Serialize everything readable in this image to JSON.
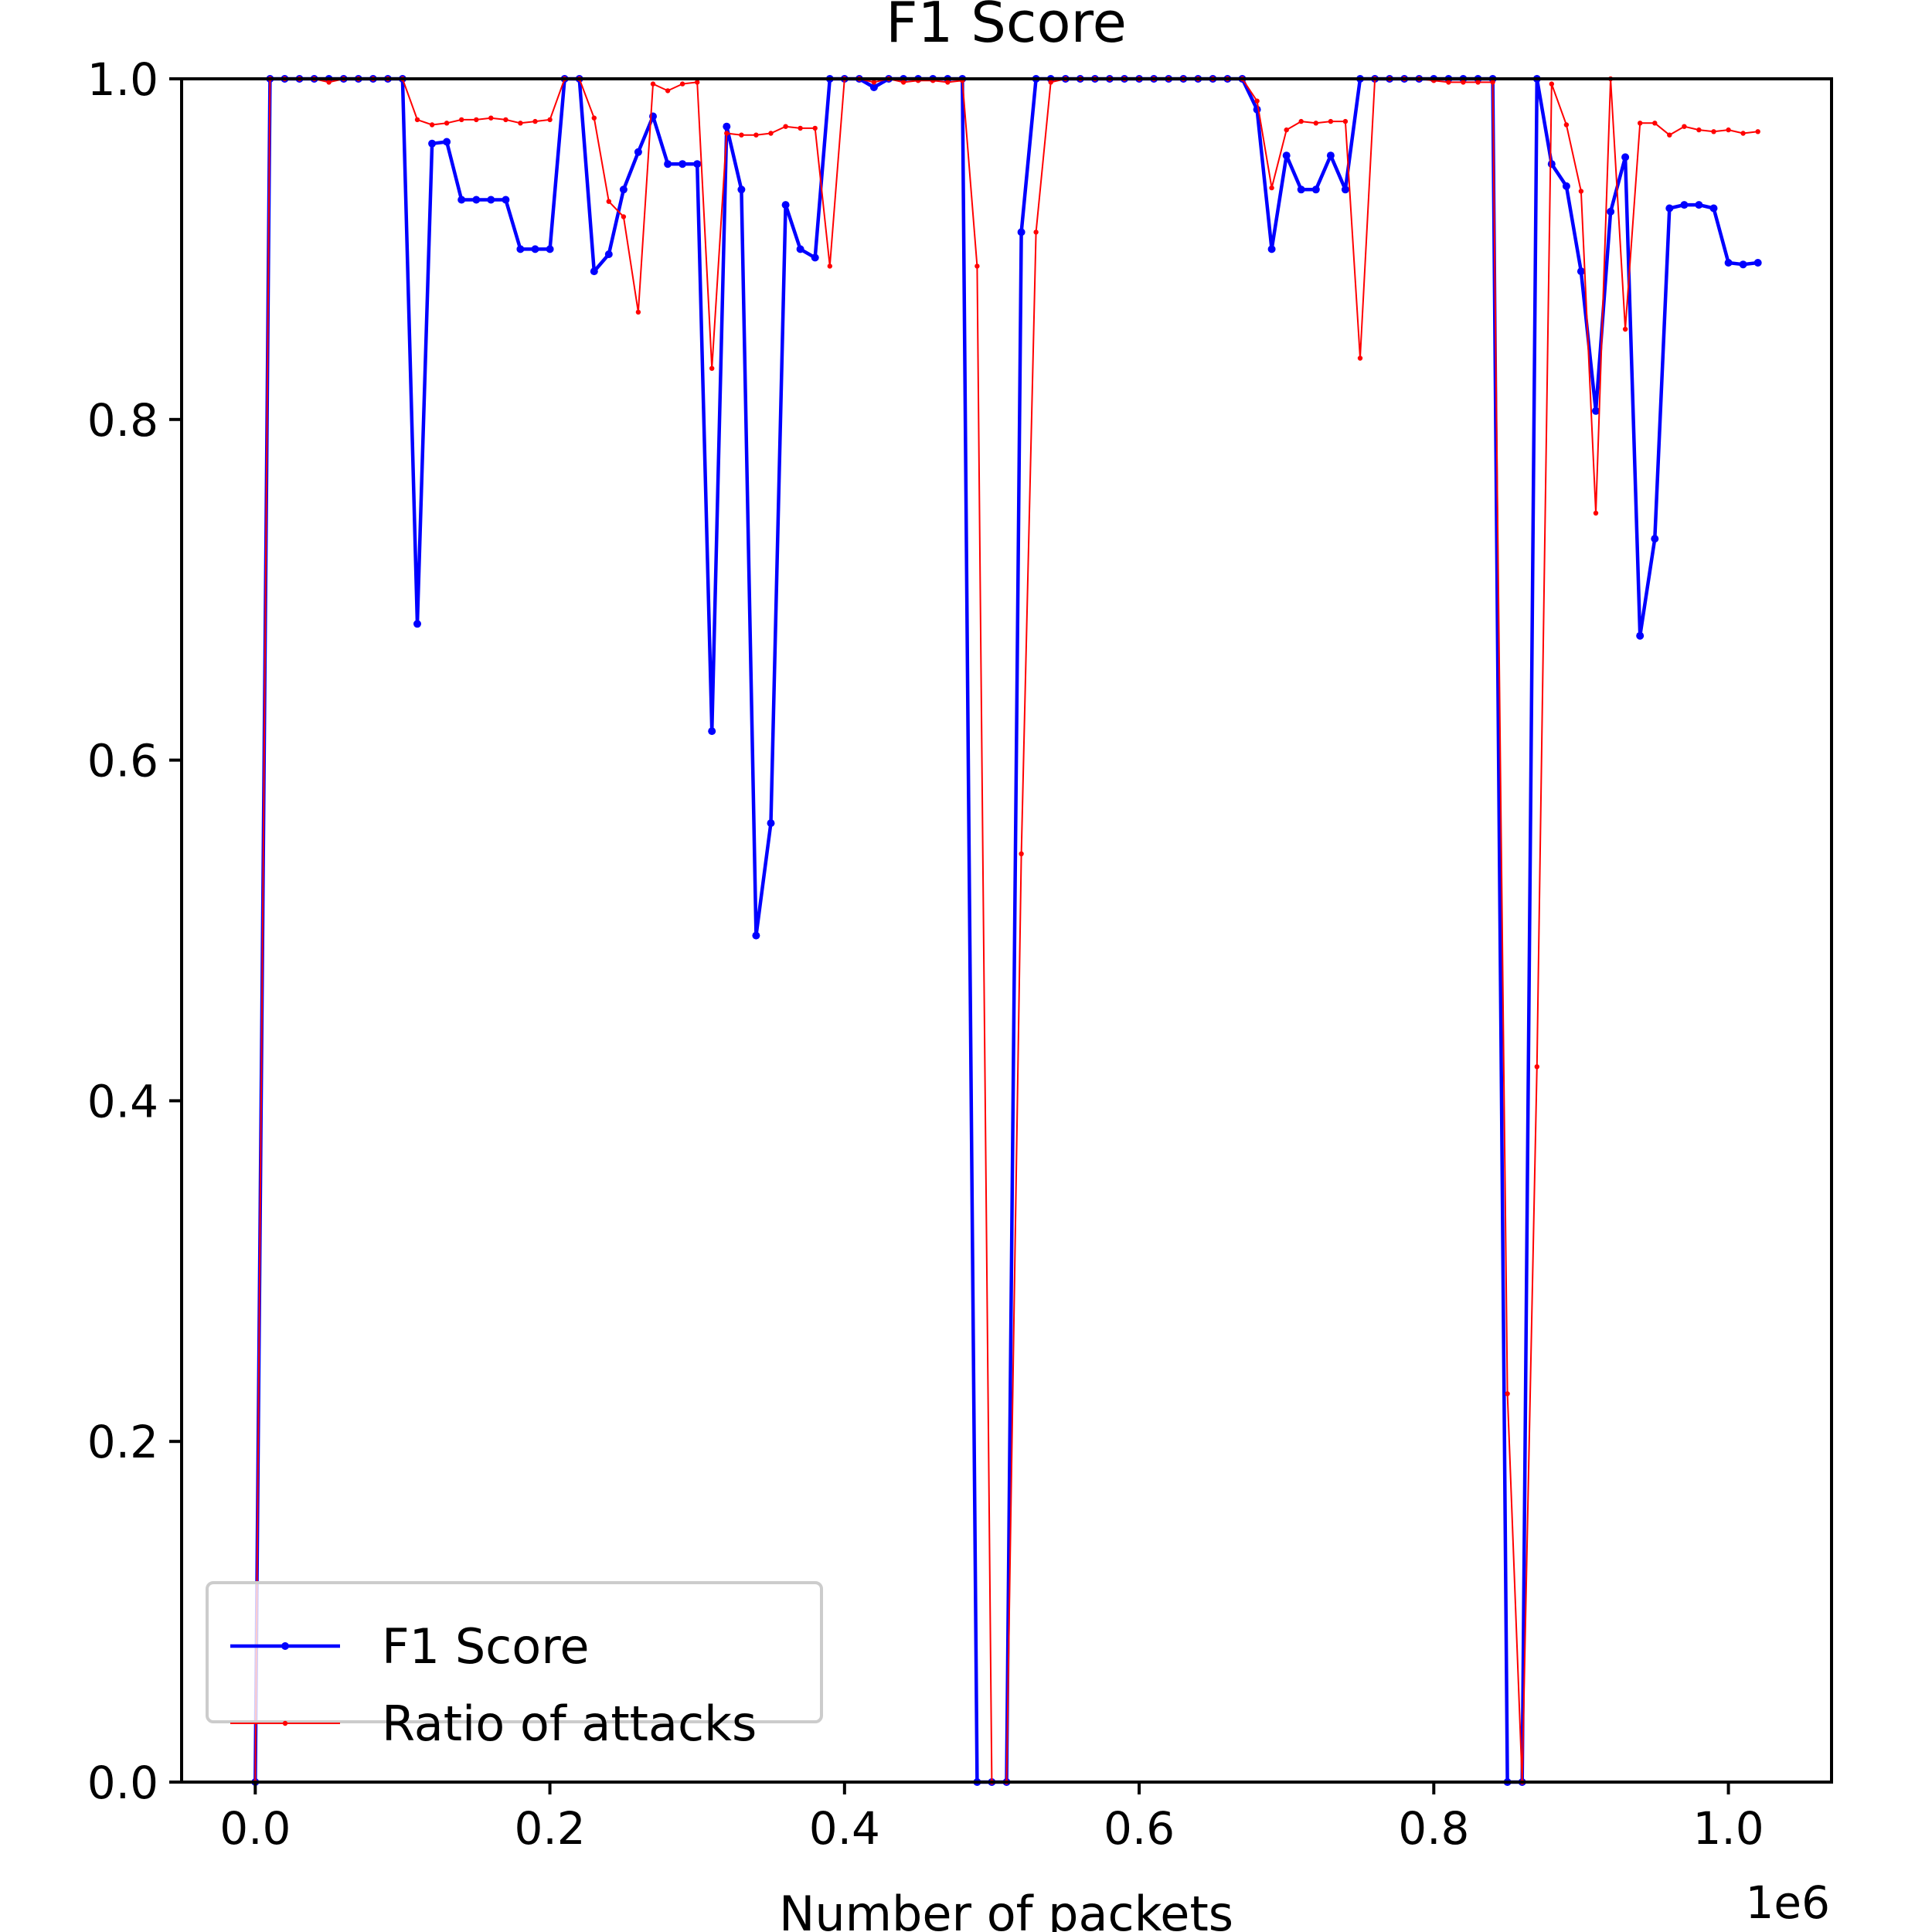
{
  "chart_data": {
    "type": "line",
    "title": "F1 Score",
    "xlabel": "Number of packets",
    "ylabel": "",
    "x_offset_text": "1e6",
    "xlim": [
      -0.05,
      1.07
    ],
    "ylim": [
      0.0,
      1.0
    ],
    "xticks": [
      0.0,
      0.2,
      0.4,
      0.6,
      0.8,
      1.0
    ],
    "xtick_labels": [
      "0.0",
      "0.2",
      "0.4",
      "0.6",
      "0.8",
      "1.0"
    ],
    "yticks": [
      0.0,
      0.2,
      0.4,
      0.6,
      0.8,
      1.0
    ],
    "ytick_labels": [
      "0.0",
      "0.2",
      "0.4",
      "0.6",
      "0.8",
      "1.0"
    ],
    "grid": false,
    "legend_position": "lower-left",
    "x": [
      0.0,
      0.01,
      0.02,
      0.03,
      0.04,
      0.05,
      0.06,
      0.07,
      0.08,
      0.09,
      0.1,
      0.11,
      0.12,
      0.13,
      0.14,
      0.15,
      0.16,
      0.17,
      0.18,
      0.19,
      0.2,
      0.21,
      0.22,
      0.23,
      0.24,
      0.25,
      0.26,
      0.27,
      0.28,
      0.29,
      0.3,
      0.31,
      0.32,
      0.33,
      0.34,
      0.35,
      0.36,
      0.37,
      0.38,
      0.39,
      0.4,
      0.41,
      0.42,
      0.43,
      0.44,
      0.45,
      0.46,
      0.47,
      0.48,
      0.49,
      0.5,
      0.51,
      0.52,
      0.53,
      0.54,
      0.55,
      0.56,
      0.57,
      0.58,
      0.59,
      0.6,
      0.61,
      0.62,
      0.63,
      0.64,
      0.65,
      0.66,
      0.67,
      0.68,
      0.69,
      0.7,
      0.71,
      0.72,
      0.73,
      0.74,
      0.75,
      0.76,
      0.77,
      0.78,
      0.79,
      0.8,
      0.81,
      0.82,
      0.83,
      0.84,
      0.85,
      0.86,
      0.87,
      0.88,
      0.89,
      0.9,
      0.91,
      0.92,
      0.93,
      0.94,
      0.95,
      0.96,
      0.97,
      0.98,
      0.99,
      1.0,
      1.01,
      1.02
    ],
    "series": [
      {
        "name": "F1 Score",
        "color": "#0000ff",
        "line_width": "thick",
        "values": [
          0.0,
          1.0,
          1.0,
          1.0,
          1.0,
          1.0,
          1.0,
          1.0,
          1.0,
          1.0,
          1.0,
          0.68,
          0.962,
          0.963,
          0.929,
          0.929,
          0.929,
          0.929,
          0.9,
          0.9,
          0.9,
          1.0,
          1.0,
          0.887,
          0.897,
          0.935,
          0.957,
          0.978,
          0.95,
          0.95,
          0.95,
          0.617,
          0.972,
          0.935,
          0.497,
          0.563,
          0.926,
          0.9,
          0.895,
          1.0,
          1.0,
          1.0,
          0.995,
          1.0,
          1.0,
          1.0,
          1.0,
          1.0,
          1.0,
          0.0,
          0.0,
          0.0,
          0.91,
          1.0,
          1.0,
          1.0,
          1.0,
          1.0,
          1.0,
          1.0,
          1.0,
          1.0,
          1.0,
          1.0,
          1.0,
          1.0,
          1.0,
          1.0,
          0.982,
          0.9,
          0.955,
          0.935,
          0.935,
          0.955,
          0.935,
          1.0,
          1.0,
          1.0,
          1.0,
          1.0,
          1.0,
          1.0,
          1.0,
          1.0,
          1.0,
          0.0,
          0.0,
          1.0,
          0.95,
          0.937,
          0.887,
          0.805,
          0.922,
          0.954,
          0.673,
          0.73,
          0.924,
          0.926,
          0.926,
          0.924,
          0.892,
          0.891,
          0.892
        ]
      },
      {
        "name": "Ratio of attacks",
        "color": "#ff0000",
        "line_width": "thin",
        "values": [
          0.0,
          1.0,
          1.0,
          1.0,
          1.0,
          0.998,
          1.0,
          1.0,
          1.0,
          1.0,
          1.0,
          0.976,
          0.973,
          0.974,
          0.976,
          0.976,
          0.977,
          0.976,
          0.974,
          0.975,
          0.976,
          1.0,
          1.0,
          0.977,
          0.928,
          0.919,
          0.863,
          0.997,
          0.993,
          0.997,
          0.998,
          0.83,
          0.968,
          0.967,
          0.967,
          0.968,
          0.972,
          0.971,
          0.971,
          0.89,
          1.0,
          1.0,
          0.998,
          1.0,
          0.998,
          0.999,
          0.999,
          0.998,
          0.999,
          0.89,
          0.0,
          0.0,
          0.545,
          0.91,
          0.998,
          1.0,
          1.0,
          1.0,
          1.0,
          1.0,
          1.0,
          1.0,
          1.0,
          1.0,
          1.0,
          1.0,
          1.0,
          1.0,
          0.987,
          0.936,
          0.97,
          0.975,
          0.974,
          0.975,
          0.975,
          0.836,
          1.0,
          1.0,
          1.0,
          1.0,
          0.999,
          0.998,
          0.998,
          0.998,
          0.998,
          0.228,
          0.0,
          0.42,
          0.997,
          0.973,
          0.934,
          0.745,
          1.0,
          0.853,
          0.974,
          0.974,
          0.967,
          0.972,
          0.97,
          0.969,
          0.97,
          0.968,
          0.969
        ]
      }
    ]
  }
}
